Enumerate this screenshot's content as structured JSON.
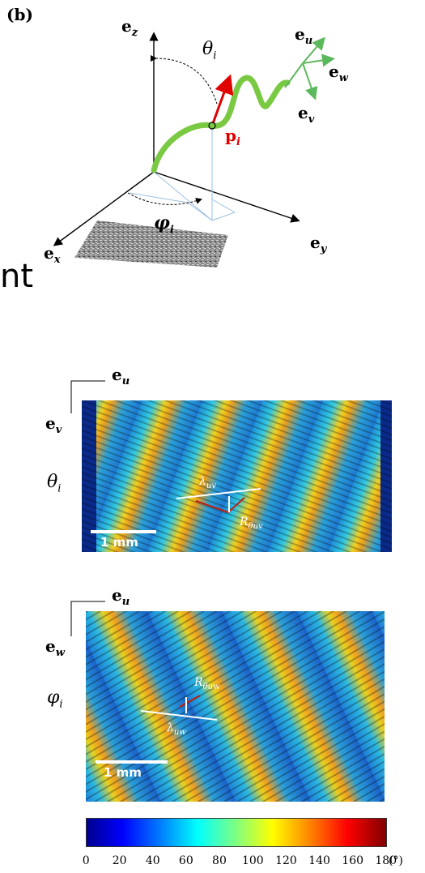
{
  "panel_label": "(b)",
  "overlap_text": "nt",
  "schematic": {
    "axes": {
      "z": "z",
      "x": "x",
      "y": "y"
    },
    "local_axes": {
      "u": "u",
      "w": "w",
      "v": "v"
    },
    "theta": "θ",
    "phi": "φ",
    "p_vector": "p",
    "index": "i",
    "vector_base": "e",
    "colors": {
      "curve": "#7ac943",
      "p_arrow": "#e00000",
      "local_axes": "#5cb85c"
    }
  },
  "map_top": {
    "axis_h": "u",
    "axis_v": "v",
    "angle_label": "θ",
    "index": "i",
    "scale_bar": "1 mm",
    "wavelength_label": "λ",
    "wavelength_sub": "uv",
    "amplitude_label": "R",
    "amplitude_sub": "θuv"
  },
  "map_bottom": {
    "axis_h": "u",
    "axis_v": "w",
    "angle_label": "φ",
    "index": "i",
    "scale_bar": "1 mm",
    "wavelength_label": "λ",
    "wavelength_sub": "uw",
    "amplitude_label": "R",
    "amplitude_sub": "θuw"
  },
  "colorbar": {
    "ticks": [
      "0",
      "20",
      "40",
      "60",
      "80",
      "100",
      "120",
      "140",
      "160",
      "180"
    ],
    "unit": "(°)",
    "colormap": "jet"
  }
}
